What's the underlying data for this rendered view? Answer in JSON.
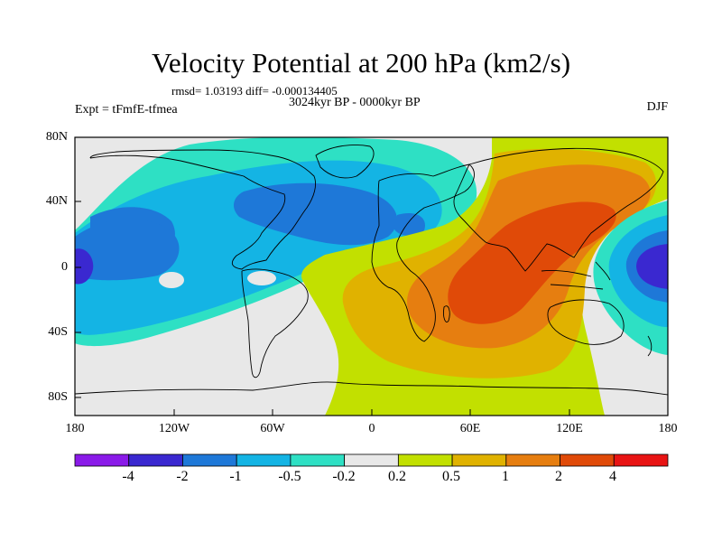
{
  "header": {
    "title": "Velocity Potential at 200 hPa (km2/s)",
    "stats": "rmsd= 1.03193 diff= -0.000134405",
    "period": "3024kyr BP - 0000kyr BP",
    "experiment": "Expt = tFmfE-tfmea",
    "season": "DJF"
  },
  "map": {
    "lat_labels": [
      "80N",
      "40N",
      "0",
      "40S",
      "80S"
    ],
    "lon_labels": [
      "180",
      "120W",
      "60W",
      "0",
      "60E",
      "120E",
      "180"
    ],
    "ocean_background": "#e8e8e8"
  },
  "colorbar": {
    "labels": [
      "-4",
      "-2",
      "-1",
      "-0.5",
      "-0.2",
      "0.2",
      "0.5",
      "1",
      "2",
      "4"
    ],
    "colors": [
      "#8a1ae8",
      "#3a28d0",
      "#1e78d8",
      "#14b4e4",
      "#2ee0c4",
      "#e8e8e8",
      "#c2e000",
      "#e0b200",
      "#e67e10",
      "#e04a08",
      "#e81414"
    ]
  }
}
